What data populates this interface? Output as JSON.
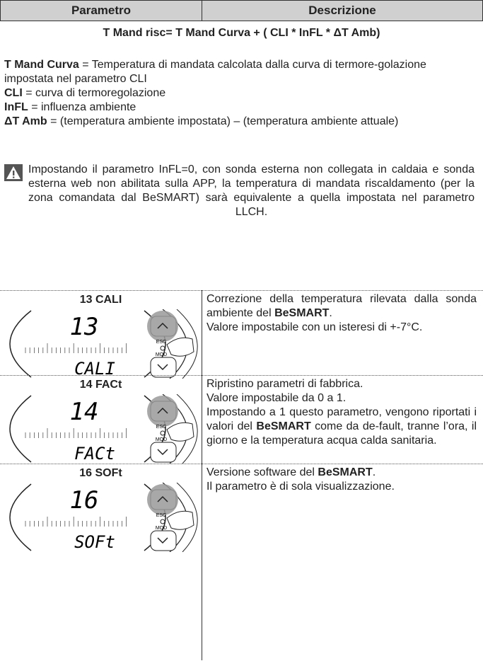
{
  "header": {
    "parametro": "Parametro",
    "descrizione": "Descrizione"
  },
  "formula": "T Mand risc= T Mand Curva + ( CLI * InFL * ΔT Amb)",
  "definitions": [
    {
      "term": "T Mand Curva",
      "text": " = Temperatura di mandata calcolata dalla curva di termore-golazione impostata nel parametro CLI"
    },
    {
      "term": "CLI",
      "text": " = curva di termoregolazione"
    },
    {
      "term": "InFL",
      "text": " = influenza ambiente"
    },
    {
      "term": "ΔT Amb",
      "text": " = (temperatura ambiente impostata) – (temperatura ambiente attuale)"
    }
  ],
  "warning": "Impostando il parametro InFL=0, con sonda esterna non collegata in caldaia e sonda esterna web non abilitata sulla APP, la temperatura di mandata riscaldamento (per la zona comandata dal BeSMART) sarà equivalente a quella impostata nel parametro LLCH.",
  "device": {
    "esc": "ESC",
    "mod": "MOD"
  },
  "rows": [
    {
      "title": "13 CALI",
      "display_number": "13",
      "display_label": "CALI",
      "description": [
        [
          {
            "text": "Correzione della temperatura rilevata dalla sonda ambiente del "
          },
          {
            "text": "BeSMART",
            "bold": true
          },
          {
            "text": "."
          }
        ],
        [
          {
            "text": "Valore impostabile con un isteresi di +-7°C."
          }
        ]
      ]
    },
    {
      "title": "14 FACt",
      "display_number": "14",
      "display_label": "FACt",
      "description": [
        [
          {
            "text": "Ripristino parametri di fabbrica."
          }
        ],
        [
          {
            "text": "Valore impostabile da 0 a 1."
          }
        ],
        [
          {
            "text": "Impostando a 1 questo parametro, vengono riportati i valori del "
          },
          {
            "text": "BeSMART",
            "bold": true
          },
          {
            "text": " come da de-fault, tranne l’ora, il giorno e la temperatura acqua calda sanitaria."
          }
        ]
      ]
    },
    {
      "title": "16 SOFt",
      "display_number": "16",
      "display_label": "SOFt",
      "description": [
        [
          {
            "text": "Versione software del "
          },
          {
            "text": "BeSMART",
            "bold": true
          },
          {
            "text": "."
          }
        ],
        [
          {
            "text": "Il parametro è di sola visualizzazione."
          }
        ]
      ]
    }
  ]
}
